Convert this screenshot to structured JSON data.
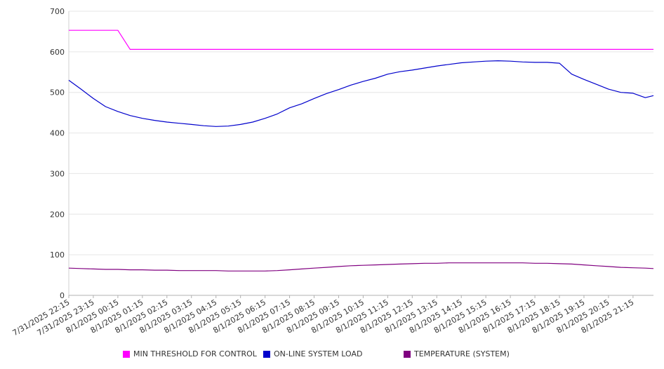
{
  "chart_data": {
    "type": "line",
    "title": "",
    "xlabel": "",
    "ylabel": "",
    "ylim": [
      0,
      700
    ],
    "yticks": [
      0,
      100,
      200,
      300,
      400,
      500,
      600,
      700
    ],
    "grid": true,
    "legend_position": "bottom",
    "x_tick_labels": [
      "7/31/2025 22:15",
      "7/31/2025 23:15",
      "8/1/2025 00:15",
      "8/1/2025 01:15",
      "8/1/2025 02:15",
      "8/1/2025 03:15",
      "8/1/2025 04:15",
      "8/1/2025 05:15",
      "8/1/2025 06:15",
      "8/1/2025 07:15",
      "8/1/2025 08:15",
      "8/1/2025 09:15",
      "8/1/2025 10:15",
      "8/1/2025 11:15",
      "8/1/2025 12:15",
      "8/1/2025 13:15",
      "8/1/2025 14:15",
      "8/1/2025 15:15",
      "8/1/2025 16:15",
      "8/1/2025 17:15",
      "8/1/2025 18:15",
      "8/1/2025 19:15",
      "8/1/2025 20:15",
      "8/1/2025 21:15"
    ],
    "x": [
      "7/31/2025 22:15",
      "7/31/2025 22:45",
      "7/31/2025 23:15",
      "7/31/2025 23:45",
      "8/1/2025 00:15",
      "8/1/2025 00:45",
      "8/1/2025 01:15",
      "8/1/2025 01:45",
      "8/1/2025 02:15",
      "8/1/2025 02:45",
      "8/1/2025 03:15",
      "8/1/2025 03:45",
      "8/1/2025 04:15",
      "8/1/2025 04:45",
      "8/1/2025 05:15",
      "8/1/2025 05:45",
      "8/1/2025 06:15",
      "8/1/2025 06:45",
      "8/1/2025 07:15",
      "8/1/2025 07:45",
      "8/1/2025 08:15",
      "8/1/2025 08:45",
      "8/1/2025 09:15",
      "8/1/2025 09:45",
      "8/1/2025 10:15",
      "8/1/2025 10:45",
      "8/1/2025 11:15",
      "8/1/2025 11:45",
      "8/1/2025 12:15",
      "8/1/2025 12:45",
      "8/1/2025 13:15",
      "8/1/2025 13:45",
      "8/1/2025 14:15",
      "8/1/2025 14:45",
      "8/1/2025 15:15",
      "8/1/2025 15:45",
      "8/1/2025 16:15",
      "8/1/2025 16:45",
      "8/1/2025 17:15",
      "8/1/2025 17:45",
      "8/1/2025 18:15",
      "8/1/2025 18:45",
      "8/1/2025 19:15",
      "8/1/2025 19:45",
      "8/1/2025 20:15",
      "8/1/2025 20:45",
      "8/1/2025 21:15",
      "8/1/2025 21:45",
      "8/1/2025 22:05"
    ],
    "series": [
      {
        "name": "MIN THRESHOLD FOR CONTROL",
        "color": "#ff00ff",
        "values": [
          653,
          653,
          653,
          653,
          653,
          606,
          606,
          606,
          606,
          606,
          606,
          606,
          606,
          606,
          606,
          606,
          606,
          606,
          606,
          606,
          606,
          606,
          606,
          606,
          606,
          606,
          606,
          606,
          606,
          606,
          606,
          606,
          606,
          606,
          606,
          606,
          606,
          606,
          606,
          606,
          606,
          606,
          606,
          606,
          606,
          606,
          606,
          606,
          606
        ]
      },
      {
        "name": "ON-LINE SYSTEM LOAD",
        "color": "#0000cc",
        "values": [
          530,
          508,
          485,
          465,
          453,
          443,
          436,
          431,
          427,
          424,
          421,
          418,
          416,
          417,
          421,
          427,
          436,
          447,
          462,
          472,
          485,
          497,
          507,
          518,
          527,
          535,
          545,
          551,
          555,
          560,
          565,
          569,
          573,
          575,
          577,
          578,
          577,
          575,
          574,
          574,
          572,
          545,
          532,
          520,
          508,
          500,
          498,
          487,
          492
        ]
      },
      {
        "name": "TEMPERATURE (SYSTEM)",
        "color": "#800080",
        "values": [
          67,
          66,
          65,
          64,
          64,
          63,
          63,
          62,
          62,
          61,
          61,
          61,
          61,
          60,
          60,
          60,
          60,
          61,
          63,
          65,
          67,
          69,
          71,
          73,
          74,
          75,
          76,
          77,
          78,
          79,
          79,
          80,
          80,
          80,
          80,
          80,
          80,
          80,
          79,
          79,
          78,
          77,
          75,
          73,
          71,
          69,
          68,
          67,
          66
        ]
      }
    ]
  }
}
